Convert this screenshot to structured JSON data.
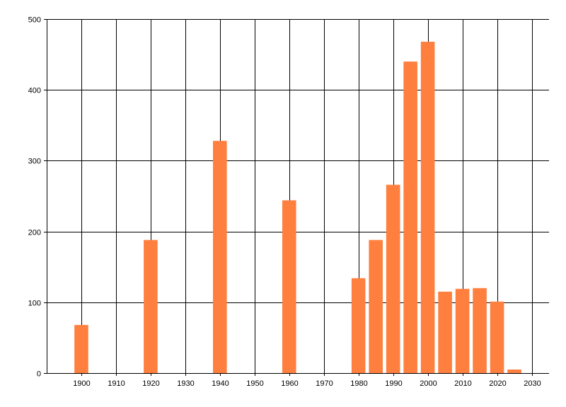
{
  "chart_data": {
    "type": "bar",
    "title": "",
    "xlabel": "",
    "ylabel": "",
    "x": [
      1900,
      1920,
      1940,
      1960,
      1980,
      1985,
      1990,
      1995,
      2000,
      2005,
      2010,
      2015,
      2020,
      2025
    ],
    "values": [
      68,
      188,
      328,
      244,
      134,
      188,
      266,
      440,
      468,
      115,
      119,
      120,
      101,
      5
    ],
    "xlim": [
      1890,
      2035
    ],
    "ylim": [
      0,
      500
    ],
    "xticks": [
      1900,
      1910,
      1920,
      1930,
      1940,
      1950,
      1960,
      1970,
      1980,
      1990,
      2000,
      2010,
      2020,
      2030
    ],
    "yticks": [
      0,
      100,
      200,
      300,
      400,
      500
    ],
    "grid": true,
    "bar_color": "#ff7f3f",
    "grid_color": "#000000"
  }
}
